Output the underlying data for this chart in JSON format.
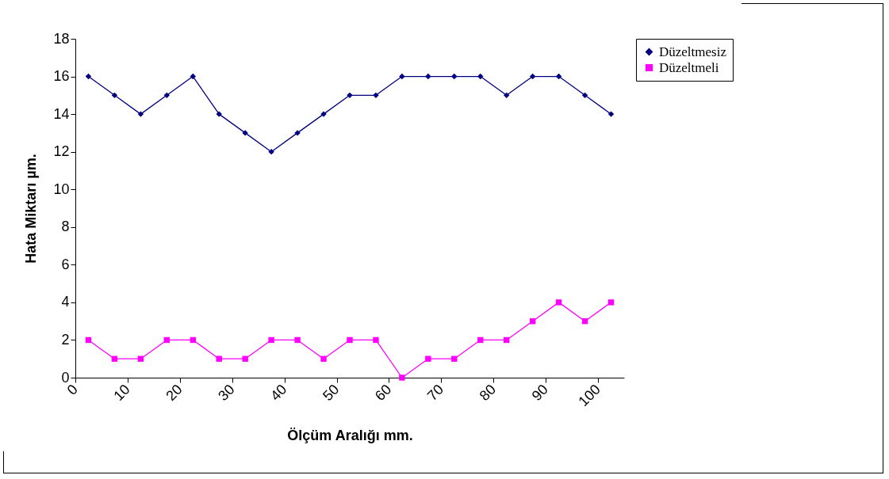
{
  "chart_data": {
    "type": "line",
    "xlabel": "Ölçüm Aralığı mm.",
    "ylabel": "Hata Miktarı µm.",
    "x": [
      2.5,
      7.5,
      12.5,
      17.5,
      22.5,
      27.5,
      32.5,
      37.5,
      42.5,
      47.5,
      52.5,
      57.5,
      62.5,
      67.5,
      72.5,
      77.5,
      82.5,
      87.5,
      92.5,
      97.5,
      102.5
    ],
    "series": [
      {
        "name": "Düzeltmesiz",
        "color": "#000080",
        "marker": "diamond",
        "values": [
          16,
          15,
          14,
          15,
          16,
          14,
          13,
          12,
          13,
          14,
          15,
          15,
          16,
          16,
          16,
          16,
          15,
          16,
          16,
          15,
          14
        ]
      },
      {
        "name": "Düzeltmeli",
        "color": "#ff00ff",
        "marker": "square",
        "values": [
          2,
          1,
          1,
          2,
          2,
          1,
          1,
          2,
          2,
          1,
          2,
          2,
          0,
          1,
          1,
          2,
          2,
          3,
          4,
          3,
          4
        ]
      }
    ],
    "xlim": [
      0,
      105
    ],
    "xticks": [
      0,
      10,
      20,
      30,
      40,
      50,
      60,
      70,
      80,
      90,
      100
    ],
    "ylim": [
      0,
      18
    ],
    "yticks": [
      0,
      2,
      4,
      6,
      8,
      10,
      12,
      14,
      16,
      18
    ],
    "grid": false,
    "legend": "right",
    "line_style": "solid"
  }
}
